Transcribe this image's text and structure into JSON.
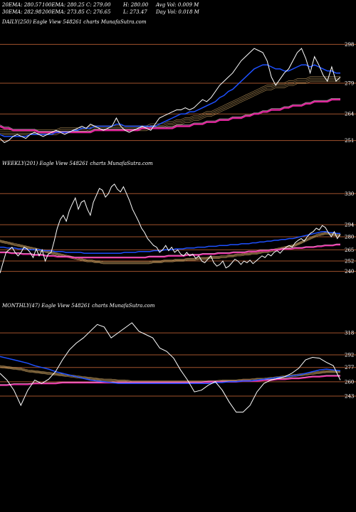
{
  "header": {
    "row1": [
      "20EMA: 280.57",
      "100EMA: 280.25",
      "C: 279.00",
      "H: 280.00",
      "Avg Vol: 0.009 M"
    ],
    "row2": [
      "30EMA: 282.98",
      "200EMA: 273.85",
      "C: 276.65",
      "L: 273.47",
      "Day Vol: 0.018 M"
    ]
  },
  "colors": {
    "price": "#ffffff",
    "level": "#a0522d",
    "ema_blue": "#1e50ff",
    "ema_magenta": "#e0259b"
  },
  "chart_data": [
    {
      "type": "line",
      "panel_label": "DAILY(250) Eagle View 548261 charts MunafaSutra.com",
      "levels": [
        298,
        279,
        264,
        251
      ],
      "ylim": [
        246,
        303
      ],
      "price": [
        252,
        250,
        251,
        253,
        254,
        253,
        252,
        254,
        255,
        254,
        253,
        254,
        255,
        256,
        255,
        254,
        255,
        256,
        257,
        258,
        257,
        259,
        258,
        257,
        256,
        257,
        258,
        262,
        258,
        256,
        255,
        256,
        257,
        258,
        257,
        256,
        259,
        262,
        263,
        264,
        265,
        266,
        266,
        267,
        266,
        267,
        269,
        271,
        270,
        272,
        275,
        278,
        280,
        282,
        284,
        287,
        290,
        292,
        294,
        296,
        295,
        294,
        290,
        282,
        278,
        281,
        284,
        286,
        290,
        294,
        296,
        291,
        284,
        292,
        288,
        283,
        280,
        287,
        280,
        282
      ],
      "ema_fast": [
        254,
        253,
        253,
        253,
        253,
        253,
        253,
        254,
        254,
        254,
        254,
        254,
        254,
        255,
        255,
        255,
        255,
        256,
        256,
        257,
        257,
        257,
        258,
        258,
        258,
        258,
        258,
        259,
        259,
        258,
        258,
        258,
        258,
        258,
        258,
        258,
        258,
        259,
        260,
        261,
        262,
        263,
        264,
        264,
        265,
        265,
        266,
        267,
        268,
        269,
        270,
        272,
        273,
        275,
        276,
        278,
        280,
        282,
        284,
        286,
        287,
        288,
        288,
        287,
        286,
        286,
        285,
        285,
        286,
        287,
        288,
        288,
        287,
        288,
        287,
        286,
        285,
        285,
        284,
        284
      ],
      "ema_mid": [
        255,
        255,
        255,
        255,
        255,
        255,
        255,
        255,
        255,
        255,
        255,
        255,
        255,
        255,
        256,
        256,
        256,
        256,
        256,
        256,
        256,
        257,
        257,
        257,
        257,
        257,
        257,
        257,
        257,
        257,
        257,
        257,
        257,
        257,
        257,
        258,
        258,
        258,
        258,
        259,
        259,
        260,
        260,
        261,
        261,
        262,
        262,
        263,
        264,
        264,
        265,
        266,
        267,
        268,
        269,
        270,
        271,
        272,
        273,
        274,
        275,
        276,
        277,
        277,
        278,
        278,
        278,
        279,
        279,
        280,
        280,
        280,
        281,
        281,
        281,
        281,
        281,
        281,
        281,
        281
      ],
      "ema_slow": [
        258,
        257,
        257,
        256,
        256,
        256,
        256,
        256,
        256,
        255,
        255,
        255,
        255,
        255,
        255,
        255,
        255,
        255,
        255,
        255,
        255,
        255,
        256,
        256,
        256,
        256,
        256,
        256,
        256,
        256,
        256,
        256,
        256,
        257,
        257,
        257,
        257,
        257,
        257,
        257,
        257,
        258,
        258,
        258,
        258,
        259,
        259,
        259,
        260,
        260,
        260,
        261,
        261,
        261,
        262,
        262,
        262,
        263,
        263,
        264,
        264,
        265,
        265,
        266,
        266,
        266,
        267,
        267,
        268,
        268,
        268,
        269,
        269,
        270,
        270,
        270,
        270,
        271,
        271,
        271
      ]
    },
    {
      "type": "line",
      "panel_label": "WEEKLY(201) Eagle View 548261 charts MunafaSutra.com",
      "levels": [
        330,
        294,
        280,
        265,
        252,
        240
      ],
      "ylim": [
        215,
        350
      ],
      "price": [
        238,
        250,
        262,
        265,
        268,
        262,
        258,
        262,
        268,
        266,
        262,
        256,
        266,
        258,
        265,
        252,
        260,
        262,
        275,
        290,
        300,
        305,
        298,
        310,
        318,
        325,
        312,
        320,
        322,
        312,
        305,
        320,
        328,
        336,
        334,
        326,
        330,
        338,
        341,
        335,
        332,
        338,
        330,
        322,
        312,
        305,
        298,
        290,
        285,
        278,
        274,
        270,
        268,
        262,
        265,
        270,
        264,
        268,
        262,
        265,
        260,
        258,
        262,
        258,
        260,
        255,
        258,
        252,
        250,
        254,
        258,
        250,
        246,
        248,
        252,
        244,
        246,
        250,
        254,
        252,
        248,
        252,
        250,
        253,
        249,
        252,
        255,
        258,
        256,
        260,
        258,
        262,
        264,
        261,
        265,
        268,
        270,
        268,
        273,
        276,
        278,
        275,
        280,
        284,
        286,
        290,
        288,
        293,
        291,
        285,
        280,
        286,
        278,
        283
      ],
      "ema_fast": [
        268,
        268,
        267,
        267,
        267,
        266,
        266,
        266,
        265,
        265,
        265,
        265,
        264,
        264,
        264,
        263,
        263,
        263,
        262,
        262,
        262,
        262,
        262,
        261,
        261,
        261,
        261,
        261,
        261,
        261,
        261,
        261,
        261,
        261,
        262,
        262,
        262,
        262,
        263,
        263,
        263,
        263,
        264,
        264,
        264,
        265,
        265,
        265,
        266,
        266,
        266,
        267,
        267,
        267,
        268,
        268,
        268,
        269,
        269,
        269,
        270,
        270,
        270,
        271,
        271,
        271,
        272,
        272,
        272,
        273,
        273,
        274,
        274,
        275,
        275,
        276,
        276,
        277,
        277,
        278,
        278,
        279,
        280,
        281,
        282,
        283,
        284,
        285,
        286,
        286,
        285,
        285,
        284,
        284
      ],
      "ema_mid": [
        275,
        274,
        273,
        272,
        271,
        270,
        269,
        268,
        267,
        266,
        265,
        264,
        263,
        262,
        261,
        260,
        259,
        258,
        257,
        256,
        255,
        254,
        253,
        252,
        252,
        251,
        251,
        250,
        250,
        250,
        250,
        250,
        250,
        250,
        250,
        250,
        250,
        250,
        250,
        250,
        251,
        251,
        251,
        252,
        252,
        252,
        253,
        253,
        253,
        254,
        254,
        254,
        255,
        255,
        255,
        256,
        256,
        256,
        257,
        257,
        258,
        258,
        259,
        259,
        260,
        260,
        261,
        261,
        262,
        263,
        263,
        264,
        265,
        266,
        267,
        268,
        269,
        270,
        272,
        274,
        276,
        278,
        280,
        282,
        283,
        284,
        284,
        283,
        282,
        282
      ],
      "ema_slow": [
        262,
        262,
        262,
        261,
        261,
        261,
        260,
        260,
        260,
        259,
        259,
        259,
        258,
        258,
        258,
        257,
        257,
        257,
        257,
        256,
        256,
        256,
        256,
        256,
        256,
        256,
        256,
        256,
        256,
        256,
        256,
        256,
        256,
        256,
        256,
        256,
        256,
        256,
        256,
        257,
        257,
        257,
        257,
        257,
        258,
        258,
        258,
        258,
        258,
        259,
        259,
        259,
        259,
        260,
        260,
        260,
        260,
        261,
        261,
        261,
        261,
        262,
        262,
        262,
        262,
        263,
        263,
        263,
        264,
        264,
        264,
        265,
        265,
        265,
        266,
        266,
        266,
        267,
        267,
        267,
        268,
        268,
        268,
        269,
        269,
        270,
        270,
        270,
        271,
        271
      ]
    },
    {
      "type": "line",
      "panel_label": "MONTHLY(47) Eagle View 548261 charts MunafaSutra.com",
      "levels": [
        318,
        292,
        277,
        260,
        243
      ],
      "ylim": [
        205,
        335
      ],
      "price": [
        270,
        262,
        250,
        232,
        250,
        262,
        258,
        263,
        272,
        286,
        298,
        306,
        312,
        320,
        328,
        325,
        312,
        318,
        324,
        330,
        320,
        316,
        312,
        300,
        296,
        288,
        274,
        262,
        248,
        250,
        256,
        260,
        250,
        236,
        224,
        224,
        232,
        248,
        258,
        262,
        264,
        266,
        270,
        276,
        286,
        289,
        288,
        283,
        279,
        262
      ],
      "ema_fast": [
        290,
        288,
        286,
        284,
        282,
        279,
        277,
        275,
        272,
        270,
        268,
        266,
        264,
        262,
        261,
        260,
        259,
        258,
        258,
        258,
        258,
        258,
        258,
        258,
        258,
        258,
        258,
        258,
        258,
        258,
        258,
        259,
        259,
        260,
        260,
        261,
        261,
        262,
        263,
        264,
        265,
        266,
        267,
        268,
        270,
        272,
        274,
        275,
        274,
        273
      ],
      "ema_mid": [
        278,
        277,
        276,
        275,
        273,
        272,
        271,
        270,
        269,
        268,
        267,
        266,
        265,
        264,
        263,
        262,
        262,
        261,
        261,
        260,
        260,
        260,
        260,
        260,
        260,
        260,
        260,
        260,
        260,
        260,
        260,
        260,
        261,
        261,
        261,
        262,
        262,
        263,
        263,
        264,
        265,
        266,
        267,
        268,
        269,
        270,
        271,
        272,
        272,
        272
      ],
      "ema_slow": [
        256,
        256,
        257,
        257,
        257,
        258,
        258,
        258,
        258,
        259,
        259,
        259,
        259,
        259,
        259,
        259,
        259,
        259,
        259,
        259,
        259,
        259,
        259,
        259,
        259,
        259,
        259,
        259,
        259,
        259,
        260,
        260,
        260,
        260,
        260,
        261,
        261,
        261,
        262,
        262,
        263,
        263,
        264,
        264,
        265,
        266,
        266,
        267,
        267,
        267
      ]
    }
  ]
}
